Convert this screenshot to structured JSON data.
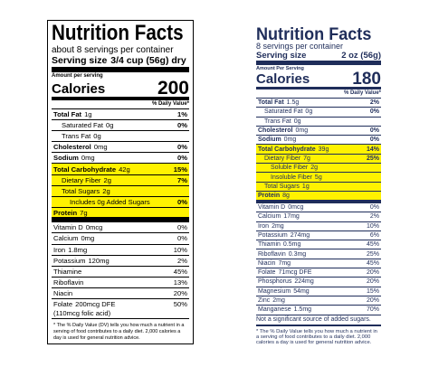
{
  "left_label": {
    "title": "Nutrition Facts",
    "servings": "about 8 servings per container",
    "serving_size_label": "Serving size",
    "serving_size": "3/4 cup (56g) dry",
    "amount_per_serving": "Amount per serving",
    "calories_label": "Calories",
    "calories": "200",
    "dv_header": "% Daily Value*",
    "nutrients": [
      {
        "name": "Total Fat",
        "amount": "1g",
        "dv": "1%"
      },
      {
        "name": "Saturated Fat",
        "amount": "0g",
        "dv": "0%"
      },
      {
        "name": "Trans Fat",
        "amount": "0g"
      },
      {
        "name": "Cholesterol",
        "amount": "0mg",
        "dv": "0%"
      },
      {
        "name": "Sodium",
        "amount": "0mg",
        "dv": "0%"
      },
      {
        "name": "Total Carbohydrate",
        "amount": "42g",
        "dv": "15%"
      },
      {
        "name": "Dietary Fiber",
        "amount": "2g",
        "dv": "7%"
      },
      {
        "name": "Total Sugars",
        "amount": "2g"
      },
      {
        "name": "Includes 0g Added Sugars",
        "dv": "0%"
      },
      {
        "name": "Protein",
        "amount": "7g"
      }
    ],
    "vitamins": [
      {
        "name": "Vitamin D",
        "amount": "0mcg",
        "dv": "0%"
      },
      {
        "name": "Calcium",
        "amount": "0mg",
        "dv": "0%"
      },
      {
        "name": "Iron",
        "amount": "1.8mg",
        "dv": "10%"
      },
      {
        "name": "Potassium",
        "amount": "120mg",
        "dv": "2%"
      },
      {
        "name": "Thiamine",
        "dv": "45%"
      },
      {
        "name": "Riboflavin",
        "dv": "13%"
      },
      {
        "name": "Niacin",
        "dv": "20%"
      },
      {
        "name": "Folate",
        "amount": "200mcg DFE",
        "note": "(110mcg folic acid)",
        "dv": "50%"
      }
    ],
    "footnote": "* The % Daily Value (DV) tells you how much a nutrient in a serving of food contributes to a daily diet. 2,000 calories a day is used for general nutrition advice."
  },
  "right_label": {
    "title": "Nutrition Facts",
    "servings": "8 servings per container",
    "serving_size_label": "Serving size",
    "serving_size": "2 oz (56g)",
    "amount_per_serving": "Amount Per Serving",
    "calories_label": "Calories",
    "calories": "180",
    "dv_header": "% Daily Value*",
    "nutrients": [
      {
        "name": "Total Fat",
        "amount": "1.5g",
        "dv": "2%"
      },
      {
        "name": "Saturated Fat",
        "amount": "0g",
        "dv": "0%"
      },
      {
        "name": "Trans Fat",
        "amount": "0g"
      },
      {
        "name": "Cholesterol",
        "amount": "0mg",
        "dv": "0%"
      },
      {
        "name": "Sodium",
        "amount": "0mg",
        "dv": "0%"
      },
      {
        "name": "Total Carbohydrate",
        "amount": "39g",
        "dv": "14%"
      },
      {
        "name": "Dietary Fiber",
        "amount": "7g",
        "dv": "25%"
      },
      {
        "name": "Soluble Fiber",
        "amount": "2g"
      },
      {
        "name": "Insoluble Fiber",
        "amount": "5g"
      },
      {
        "name": "Total Sugars",
        "amount": "1g"
      },
      {
        "name": "Protein",
        "amount": "8g"
      }
    ],
    "vitamins": [
      {
        "name": "Vitamin D",
        "amount": "0mcg",
        "dv": "0%"
      },
      {
        "name": "Calcium",
        "amount": "17mg",
        "dv": "2%"
      },
      {
        "name": "Iron",
        "amount": "2mg",
        "dv": "10%"
      },
      {
        "name": "Potassium",
        "amount": "274mg",
        "dv": "6%"
      },
      {
        "name": "Thiamin",
        "amount": "0.5mg",
        "dv": "45%"
      },
      {
        "name": "Riboflavin",
        "amount": "0.3mg",
        "dv": "25%"
      },
      {
        "name": "Niacin",
        "amount": "7mg",
        "dv": "45%"
      },
      {
        "name": "Folate",
        "amount": "71mcg DFE",
        "dv": "20%"
      },
      {
        "name": "Phosphorus",
        "amount": "224mg",
        "dv": "20%"
      },
      {
        "name": "Magnesium",
        "amount": "54mg",
        "dv": "15%"
      },
      {
        "name": "Zinc",
        "amount": "2mg",
        "dv": "20%"
      },
      {
        "name": "Manganese",
        "amount": "1.5mg",
        "dv": "70%"
      }
    ],
    "notice": "Not a significant source of added sugars.",
    "footnote": "* The % Daily Value tells you how much a nutrient in a serving of food contributes to a daily diet. 2,000 calories a day is used for general nutrition advice."
  }
}
